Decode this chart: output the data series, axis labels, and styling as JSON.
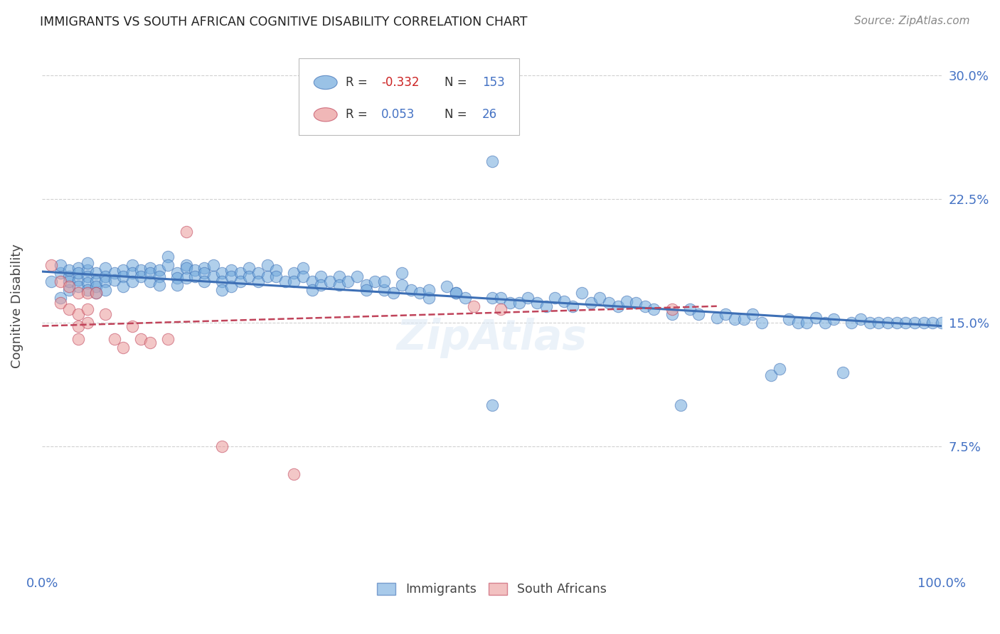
{
  "title": "IMMIGRANTS VS SOUTH AFRICAN COGNITIVE DISABILITY CORRELATION CHART",
  "source": "Source: ZipAtlas.com",
  "ylabel": "Cognitive Disability",
  "xlim": [
    0,
    1.0
  ],
  "ylim": [
    0,
    0.32
  ],
  "yticks": [
    0.075,
    0.15,
    0.225,
    0.3
  ],
  "ytick_labels": [
    "7.5%",
    "15.0%",
    "22.5%",
    "30.0%"
  ],
  "xticks": [
    0.0,
    0.1,
    0.2,
    0.3,
    0.4,
    0.5,
    0.6,
    0.7,
    0.8,
    0.9,
    1.0
  ],
  "blue_color": "#6fa8dc",
  "pink_color": "#ea9999",
  "blue_line_color": "#3d6fb5",
  "pink_line_color": "#c0435a",
  "axis_color": "#4472c4",
  "immigrants_x": [
    0.01,
    0.02,
    0.02,
    0.02,
    0.03,
    0.03,
    0.03,
    0.03,
    0.04,
    0.04,
    0.04,
    0.04,
    0.05,
    0.05,
    0.05,
    0.05,
    0.05,
    0.06,
    0.06,
    0.06,
    0.06,
    0.07,
    0.07,
    0.07,
    0.07,
    0.08,
    0.08,
    0.09,
    0.09,
    0.09,
    0.1,
    0.1,
    0.1,
    0.11,
    0.11,
    0.12,
    0.12,
    0.12,
    0.13,
    0.13,
    0.13,
    0.14,
    0.14,
    0.15,
    0.15,
    0.15,
    0.16,
    0.16,
    0.16,
    0.17,
    0.17,
    0.18,
    0.18,
    0.18,
    0.19,
    0.19,
    0.2,
    0.2,
    0.2,
    0.21,
    0.21,
    0.21,
    0.22,
    0.22,
    0.23,
    0.23,
    0.24,
    0.24,
    0.25,
    0.25,
    0.26,
    0.26,
    0.27,
    0.28,
    0.28,
    0.29,
    0.29,
    0.3,
    0.3,
    0.31,
    0.31,
    0.32,
    0.33,
    0.33,
    0.34,
    0.35,
    0.36,
    0.36,
    0.37,
    0.38,
    0.39,
    0.4,
    0.41,
    0.42,
    0.43,
    0.45,
    0.46,
    0.47,
    0.48,
    0.5,
    0.5,
    0.51,
    0.52,
    0.53,
    0.54,
    0.55,
    0.56,
    0.57,
    0.58,
    0.59,
    0.6,
    0.61,
    0.62,
    0.63,
    0.64,
    0.65,
    0.66,
    0.67,
    0.68,
    0.7,
    0.71,
    0.72,
    0.73,
    0.75,
    0.76,
    0.77,
    0.78,
    0.79,
    0.8,
    0.81,
    0.82,
    0.83,
    0.84,
    0.85,
    0.86,
    0.87,
    0.88,
    0.89,
    0.9,
    0.91,
    0.92,
    0.93,
    0.94,
    0.95,
    0.96,
    0.97,
    0.98,
    0.99,
    1.0,
    0.38,
    0.4,
    0.43,
    0.46,
    0.5
  ],
  "immigrants_y": [
    0.175,
    0.18,
    0.185,
    0.165,
    0.178,
    0.182,
    0.17,
    0.175,
    0.183,
    0.176,
    0.18,
    0.172,
    0.182,
    0.178,
    0.174,
    0.186,
    0.17,
    0.18,
    0.175,
    0.172,
    0.168,
    0.183,
    0.178,
    0.175,
    0.17,
    0.18,
    0.176,
    0.182,
    0.178,
    0.172,
    0.185,
    0.18,
    0.175,
    0.182,
    0.178,
    0.183,
    0.18,
    0.175,
    0.182,
    0.178,
    0.173,
    0.19,
    0.185,
    0.18,
    0.177,
    0.173,
    0.185,
    0.183,
    0.177,
    0.182,
    0.178,
    0.183,
    0.18,
    0.175,
    0.185,
    0.178,
    0.18,
    0.175,
    0.17,
    0.182,
    0.178,
    0.172,
    0.18,
    0.175,
    0.183,
    0.178,
    0.18,
    0.175,
    0.185,
    0.178,
    0.182,
    0.178,
    0.175,
    0.18,
    0.175,
    0.183,
    0.178,
    0.175,
    0.17,
    0.178,
    0.173,
    0.175,
    0.178,
    0.173,
    0.175,
    0.178,
    0.173,
    0.17,
    0.175,
    0.17,
    0.168,
    0.173,
    0.17,
    0.168,
    0.165,
    0.172,
    0.168,
    0.165,
    0.27,
    0.165,
    0.248,
    0.165,
    0.162,
    0.162,
    0.165,
    0.162,
    0.16,
    0.165,
    0.163,
    0.16,
    0.168,
    0.162,
    0.165,
    0.162,
    0.16,
    0.163,
    0.162,
    0.16,
    0.158,
    0.155,
    0.1,
    0.158,
    0.155,
    0.153,
    0.155,
    0.152,
    0.152,
    0.155,
    0.15,
    0.118,
    0.122,
    0.152,
    0.15,
    0.15,
    0.153,
    0.15,
    0.152,
    0.12,
    0.15,
    0.152,
    0.15,
    0.15,
    0.15,
    0.15,
    0.15,
    0.15,
    0.15,
    0.15,
    0.15,
    0.175,
    0.18,
    0.17,
    0.168,
    0.1
  ],
  "sa_x": [
    0.01,
    0.02,
    0.02,
    0.03,
    0.03,
    0.04,
    0.04,
    0.04,
    0.04,
    0.05,
    0.05,
    0.05,
    0.06,
    0.07,
    0.08,
    0.09,
    0.1,
    0.11,
    0.12,
    0.14,
    0.16,
    0.2,
    0.28,
    0.48,
    0.51,
    0.7
  ],
  "sa_y": [
    0.185,
    0.175,
    0.162,
    0.172,
    0.158,
    0.168,
    0.155,
    0.148,
    0.14,
    0.168,
    0.158,
    0.15,
    0.168,
    0.155,
    0.14,
    0.135,
    0.148,
    0.14,
    0.138,
    0.14,
    0.205,
    0.075,
    0.058,
    0.16,
    0.158,
    0.158
  ],
  "immigrants_trend_x": [
    0.0,
    1.0
  ],
  "immigrants_trend_y": [
    0.181,
    0.148
  ],
  "sa_trend_x": [
    0.0,
    0.75
  ],
  "sa_trend_y": [
    0.148,
    0.16
  ],
  "background_color": "#ffffff",
  "grid_color": "#d0d0d0"
}
